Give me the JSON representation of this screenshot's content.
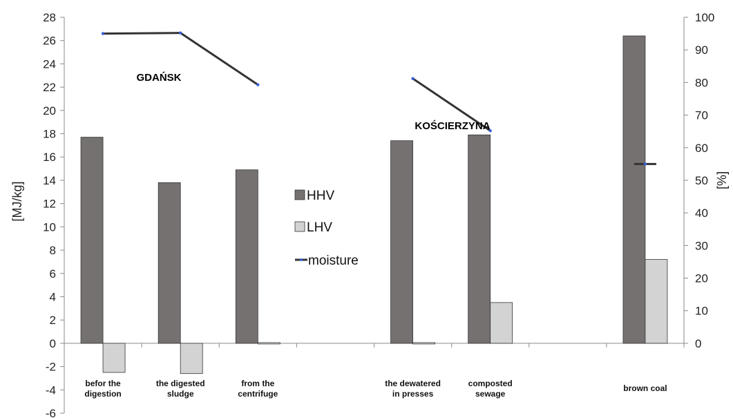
{
  "chart_data": {
    "type": "bar",
    "categories": [
      [
        "befor the",
        "digestion"
      ],
      [
        "the digested",
        "sludge"
      ],
      [
        "from the",
        "centrifuge"
      ],
      [
        "",
        ""
      ],
      [
        "the dewatered",
        "in presses"
      ],
      [
        "composted",
        "sewage"
      ],
      [
        "",
        ""
      ],
      [
        "brown coal",
        ""
      ]
    ],
    "series": [
      {
        "name": "HHV",
        "axis": "left",
        "color": "#767171",
        "values": [
          17.7,
          13.8,
          14.9,
          null,
          17.4,
          17.9,
          null,
          26.4
        ]
      },
      {
        "name": "LHV",
        "axis": "left",
        "color": "#d3d3d3",
        "values": [
          -2.5,
          -2.6,
          0.1,
          null,
          0,
          3.5,
          null,
          7.2
        ]
      },
      {
        "name": "moisture",
        "axis": "right",
        "type": "line",
        "color": "#333333",
        "values": [
          95,
          95.2,
          79.3,
          null,
          81.2,
          65.2,
          null,
          55
        ]
      }
    ],
    "ylabel": "[MJ/kg]",
    "y2label": "[%]",
    "ylim": [
      -6,
      28
    ],
    "y2lim": [
      0,
      100
    ],
    "yticks": [
      -6,
      -4,
      -2,
      0,
      2,
      4,
      6,
      8,
      10,
      12,
      14,
      16,
      18,
      20,
      22,
      24,
      26,
      28
    ],
    "y2ticks": [
      0,
      10,
      20,
      30,
      40,
      50,
      60,
      70,
      80,
      90,
      100
    ],
    "annotations": [
      {
        "text": "GDAŃSK",
        "category": 1
      },
      {
        "text": "KOŚCIERZYNA",
        "category": 4.5
      }
    ],
    "legend": [
      "HHV",
      "LHV",
      "moisture"
    ],
    "legend_position": "center",
    "grid": false
  }
}
